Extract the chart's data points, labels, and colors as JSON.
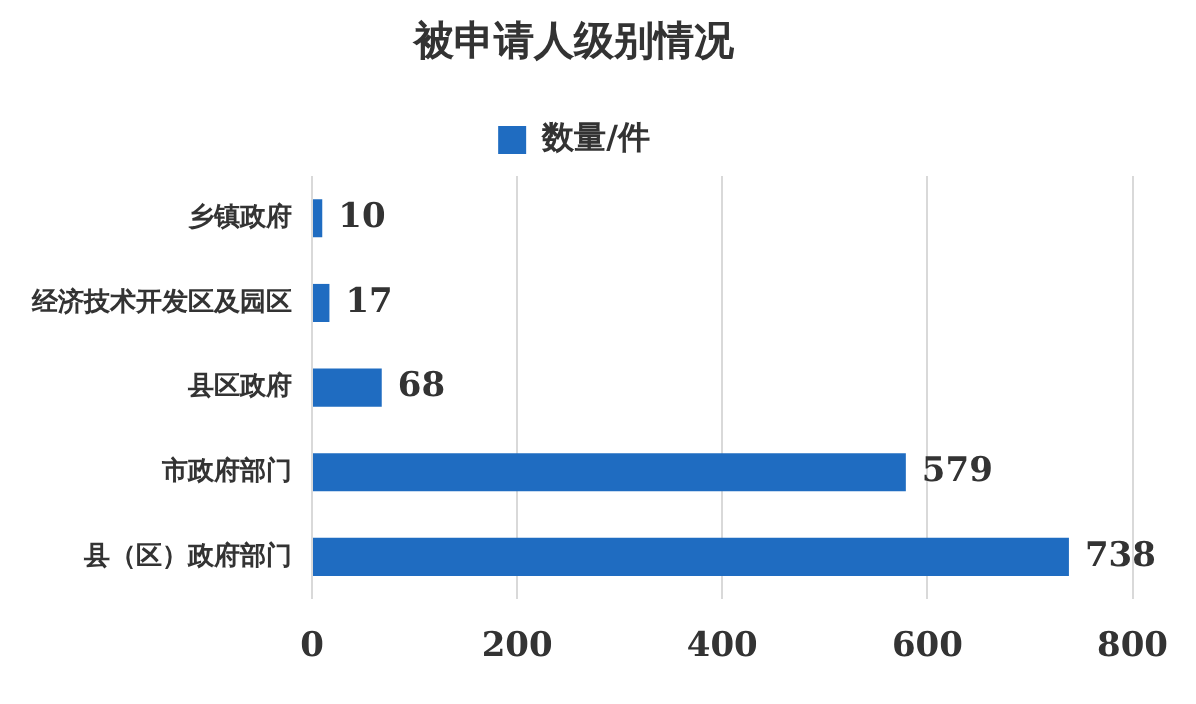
{
  "chart_data": {
    "type": "bar",
    "orientation": "horizontal",
    "title": "被申请人级别情况",
    "categories": [
      "乡镇政府",
      "经济技术开发区及园区",
      "县区政府",
      "市政府部门",
      "县（区）政府部门"
    ],
    "series": [
      {
        "name": "数量/件",
        "color": "#1f6cc1",
        "values": [
          10,
          17,
          68,
          579,
          738
        ]
      }
    ],
    "xlim": [
      0,
      800
    ],
    "xticks": [
      0,
      200,
      400,
      600,
      800
    ],
    "grid": "x",
    "legend": "top",
    "data_labels": true
  }
}
